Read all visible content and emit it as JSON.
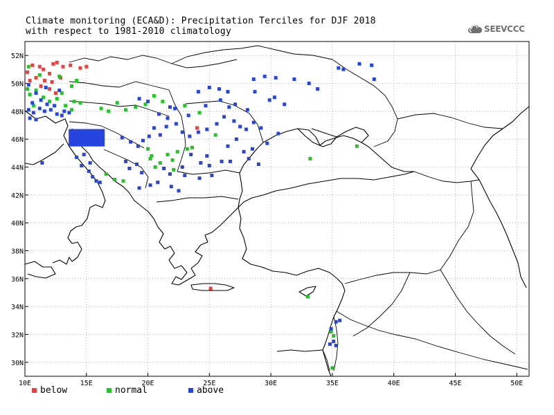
{
  "title": {
    "line1": "Climate monitoring (ECA&D): Precipitation Terciles for DJF 2018",
    "line2": "with respect to 1981-2010 climatology"
  },
  "logo": {
    "text": "SEEVCCC",
    "icon": "cloud-icon"
  },
  "map": {
    "lon_range": [
      10,
      51
    ],
    "lat_range": [
      29,
      53
    ],
    "x_ticks": [
      {
        "lon": 10,
        "label": "10E"
      },
      {
        "lon": 15,
        "label": "15E"
      },
      {
        "lon": 20,
        "label": "20E"
      },
      {
        "lon": 25,
        "label": "25E"
      },
      {
        "lon": 30,
        "label": "30E"
      },
      {
        "lon": 35,
        "label": "35E"
      },
      {
        "lon": 40,
        "label": "40E"
      },
      {
        "lon": 45,
        "label": "45E"
      },
      {
        "lon": 50,
        "label": "50E"
      }
    ],
    "y_ticks": [
      {
        "lat": 30,
        "label": "30N"
      },
      {
        "lat": 32,
        "label": "32N"
      },
      {
        "lat": 34,
        "label": "34N"
      },
      {
        "lat": 36,
        "label": "36N"
      },
      {
        "lat": 38,
        "label": "38N"
      },
      {
        "lat": 40,
        "label": "40N"
      },
      {
        "lat": 42,
        "label": "42N"
      },
      {
        "lat": 44,
        "label": "44N"
      },
      {
        "lat": 46,
        "label": "46N"
      },
      {
        "lat": 48,
        "label": "48N"
      },
      {
        "lat": 50,
        "label": "50N"
      },
      {
        "lat": 52,
        "label": "52N"
      }
    ],
    "grid": "dotted"
  },
  "legend": [
    {
      "label": "below",
      "color": "#e8423e"
    },
    {
      "label": "normal",
      "color": "#1ec81e"
    },
    {
      "label": "above",
      "color": "#2844e0"
    }
  ],
  "colors": {
    "below": "#e8423e",
    "normal": "#1ec81e",
    "above": "#2844e0"
  },
  "chart_data": {
    "type": "scatter",
    "x_unit": "degrees east",
    "y_unit": "degrees north",
    "xlim": [
      10,
      51
    ],
    "ylim": [
      29,
      53
    ],
    "series": [
      {
        "name": "below",
        "points": [
          [
            10.2,
            50.8
          ],
          [
            10.6,
            51.3
          ],
          [
            11.2,
            51.2
          ],
          [
            11.5,
            51.0
          ],
          [
            12.0,
            50.7
          ],
          [
            12.3,
            51.4
          ],
          [
            12.6,
            51.5
          ],
          [
            13.1,
            51.2
          ],
          [
            13.7,
            51.3
          ],
          [
            14.5,
            51.1
          ],
          [
            15.0,
            51.2
          ],
          [
            10.9,
            50.4
          ],
          [
            11.6,
            50.2
          ],
          [
            12.2,
            50.1
          ],
          [
            12.9,
            50.4
          ],
          [
            11.3,
            49.8
          ],
          [
            12.0,
            49.6
          ],
          [
            12.5,
            49.3
          ],
          [
            24.0,
            46.8
          ],
          [
            25.1,
            35.3
          ],
          [
            10.4,
            50.2
          ]
        ]
      },
      {
        "name": "normal",
        "points": [
          [
            10.3,
            51.2
          ],
          [
            10.2,
            49.6
          ],
          [
            10.4,
            49.2
          ],
          [
            10.9,
            49.5
          ],
          [
            11.5,
            49.0
          ],
          [
            12.0,
            48.7
          ],
          [
            12.6,
            48.9
          ],
          [
            13.3,
            48.4
          ],
          [
            13.0,
            49.3
          ],
          [
            13.8,
            49.8
          ],
          [
            14.2,
            50.2
          ],
          [
            11.2,
            50.6
          ],
          [
            12.8,
            50.5
          ],
          [
            14.5,
            48.6
          ],
          [
            13.8,
            48.1
          ],
          [
            10.7,
            48.4
          ],
          [
            16.2,
            48.2
          ],
          [
            16.8,
            48.0
          ],
          [
            17.5,
            48.6
          ],
          [
            18.2,
            48.1
          ],
          [
            19.0,
            48.3
          ],
          [
            19.8,
            48.5
          ],
          [
            20.5,
            49.1
          ],
          [
            21.2,
            48.7
          ],
          [
            23.0,
            48.4
          ],
          [
            24.2,
            47.9
          ],
          [
            25.5,
            46.3
          ],
          [
            20.0,
            45.3
          ],
          [
            20.3,
            44.8
          ],
          [
            21.0,
            44.3
          ],
          [
            21.6,
            44.9
          ],
          [
            22.0,
            44.5
          ],
          [
            22.4,
            45.1
          ],
          [
            23.2,
            45.3
          ],
          [
            23.6,
            45.4
          ],
          [
            20.2,
            44.6
          ],
          [
            20.6,
            44.0
          ],
          [
            22.1,
            43.8
          ],
          [
            16.6,
            43.5
          ],
          [
            17.3,
            43.1
          ],
          [
            18.0,
            43.0
          ],
          [
            33.0,
            34.7
          ],
          [
            34.9,
            32.2
          ],
          [
            35.1,
            31.9
          ],
          [
            33.2,
            44.6
          ],
          [
            37.0,
            45.5
          ],
          [
            35.0,
            29.6
          ],
          [
            14.0,
            48.7
          ]
        ]
      },
      {
        "name": "above",
        "points": [
          [
            10.3,
            48.1
          ],
          [
            10.7,
            47.9
          ],
          [
            11.2,
            48.2
          ],
          [
            11.6,
            48.0
          ],
          [
            12.1,
            48.1
          ],
          [
            12.6,
            47.8
          ],
          [
            13.0,
            47.7
          ],
          [
            10.4,
            47.5
          ],
          [
            10.9,
            47.4
          ],
          [
            10.6,
            48.6
          ],
          [
            11.3,
            48.8
          ],
          [
            11.8,
            48.5
          ],
          [
            12.4,
            48.4
          ],
          [
            13.2,
            48.0
          ],
          [
            13.6,
            47.9
          ],
          [
            10.9,
            49.3
          ],
          [
            12.8,
            49.5
          ],
          [
            11.7,
            49.7
          ],
          [
            10.3,
            49.9
          ],
          [
            11.4,
            44.3
          ],
          [
            14.2,
            44.7
          ],
          [
            14.6,
            44.1
          ],
          [
            15.2,
            43.7
          ],
          [
            15.5,
            43.3
          ],
          [
            15.8,
            43.0
          ],
          [
            16.1,
            42.9
          ],
          [
            15.3,
            44.3
          ],
          [
            14.8,
            44.9
          ],
          [
            17.9,
            46.1
          ],
          [
            18.6,
            45.8
          ],
          [
            19.2,
            45.5
          ],
          [
            19.6,
            45.9
          ],
          [
            20.1,
            46.2
          ],
          [
            21.0,
            46.3
          ],
          [
            21.5,
            46.9
          ],
          [
            22.3,
            47.1
          ],
          [
            22.8,
            46.5
          ],
          [
            23.4,
            46.2
          ],
          [
            24.1,
            46.5
          ],
          [
            24.8,
            46.7
          ],
          [
            25.6,
            47.1
          ],
          [
            26.2,
            47.6
          ],
          [
            27.0,
            47.3
          ],
          [
            27.5,
            46.9
          ],
          [
            28.0,
            46.7
          ],
          [
            27.2,
            46.0
          ],
          [
            26.5,
            45.5
          ],
          [
            27.8,
            45.1
          ],
          [
            28.2,
            44.6
          ],
          [
            26.0,
            44.4
          ],
          [
            25.0,
            44.1
          ],
          [
            24.3,
            44.3
          ],
          [
            23.5,
            44.9
          ],
          [
            22.8,
            44.0
          ],
          [
            21.8,
            43.5
          ],
          [
            21.3,
            43.9
          ],
          [
            20.8,
            42.9
          ],
          [
            19.5,
            43.6
          ],
          [
            19.1,
            44.2
          ],
          [
            18.5,
            43.9
          ],
          [
            18.2,
            44.4
          ],
          [
            19.3,
            42.5
          ],
          [
            20.2,
            42.7
          ],
          [
            21.9,
            42.6
          ],
          [
            22.5,
            42.3
          ],
          [
            23.0,
            43.4
          ],
          [
            24.2,
            43.2
          ],
          [
            25.2,
            43.4
          ],
          [
            20.5,
            46.8
          ],
          [
            21.6,
            47.5
          ],
          [
            20.9,
            47.8
          ],
          [
            21.8,
            48.3
          ],
          [
            22.2,
            48.2
          ],
          [
            23.3,
            47.7
          ],
          [
            24.7,
            48.4
          ],
          [
            25.9,
            48.8
          ],
          [
            26.6,
            48.3
          ],
          [
            27.1,
            48.5
          ],
          [
            28.1,
            48.1
          ],
          [
            28.6,
            47.2
          ],
          [
            29.2,
            46.8
          ],
          [
            30.6,
            46.4
          ],
          [
            29.7,
            45.7
          ],
          [
            28.6,
            50.3
          ],
          [
            29.5,
            50.5
          ],
          [
            30.4,
            50.4
          ],
          [
            31.9,
            50.3
          ],
          [
            33.1,
            50.0
          ],
          [
            33.8,
            49.6
          ],
          [
            35.5,
            51.1
          ],
          [
            35.9,
            51.0
          ],
          [
            37.2,
            51.4
          ],
          [
            38.2,
            51.3
          ],
          [
            38.4,
            50.3
          ],
          [
            29.9,
            48.8
          ],
          [
            31.1,
            48.5
          ],
          [
            28.7,
            49.4
          ],
          [
            30.3,
            49.0
          ],
          [
            25.8,
            49.6
          ],
          [
            25.0,
            49.7
          ],
          [
            26.5,
            49.4
          ],
          [
            24.1,
            49.4
          ],
          [
            34.8,
            31.3
          ],
          [
            35.1,
            31.5
          ],
          [
            35.3,
            32.9
          ],
          [
            35.6,
            33.0
          ],
          [
            35.3,
            31.2
          ],
          [
            34.9,
            32.4
          ],
          [
            20.0,
            48.7
          ],
          [
            19.3,
            48.9
          ],
          [
            24.8,
            44.8
          ],
          [
            26.7,
            44.4
          ],
          [
            29.0,
            44.2
          ],
          [
            28.5,
            45.3
          ]
        ]
      }
    ]
  }
}
